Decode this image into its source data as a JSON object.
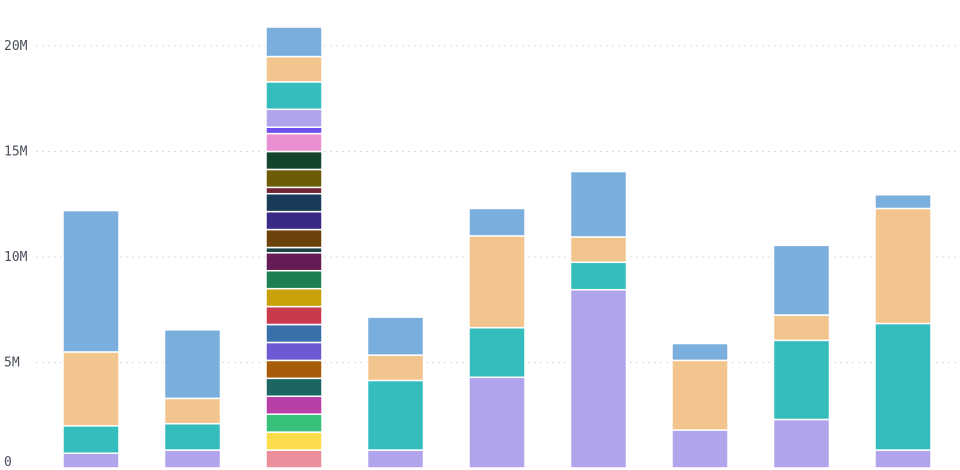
{
  "chart_data": {
    "type": "bar",
    "stacked": true,
    "orientation": "vertical",
    "grid": true,
    "ylim": [
      0,
      21000000
    ],
    "y_ticks": [
      {
        "value": 0,
        "label": "0"
      },
      {
        "value": 5000000,
        "label": "5M"
      },
      {
        "value": 10000000,
        "label": "10M"
      },
      {
        "value": 15000000,
        "label": "15M"
      },
      {
        "value": 20000000,
        "label": "20M"
      }
    ],
    "bars": [
      {
        "segments": [
          {
            "value": 700000,
            "color": "#b0a4ec"
          },
          {
            "value": 1300000,
            "color": "#35bcbd"
          },
          {
            "value": 3500000,
            "color": "#f2c48e"
          },
          {
            "value": 6700000,
            "color": "#7aafdd"
          }
        ]
      },
      {
        "segments": [
          {
            "value": 850000,
            "color": "#b0a4ec"
          },
          {
            "value": 1250000,
            "color": "#35bcbd"
          },
          {
            "value": 1200000,
            "color": "#f2c48e"
          },
          {
            "value": 3250000,
            "color": "#7aafdd"
          }
        ]
      },
      {
        "segments": [
          {
            "value": 850000,
            "color": "#ec8f9c"
          },
          {
            "value": 850000,
            "color": "#fbdc4c"
          },
          {
            "value": 850000,
            "color": "#37c07a"
          },
          {
            "value": 850000,
            "color": "#b83fa6"
          },
          {
            "value": 850000,
            "color": "#1b6663"
          },
          {
            "value": 850000,
            "color": "#a65c08"
          },
          {
            "value": 850000,
            "color": "#6c5ad3"
          },
          {
            "value": 850000,
            "color": "#3970a9"
          },
          {
            "value": 850000,
            "color": "#ca3a4d"
          },
          {
            "value": 850000,
            "color": "#c8a009"
          },
          {
            "value": 850000,
            "color": "#1d7f52"
          },
          {
            "value": 850000,
            "color": "#651c55"
          },
          {
            "value": 250000,
            "color": "#1e4446"
          },
          {
            "value": 850000,
            "color": "#6c420b"
          },
          {
            "value": 850000,
            "color": "#3a2a85"
          },
          {
            "value": 850000,
            "color": "#1a3a5a"
          },
          {
            "value": 300000,
            "color": "#702634"
          },
          {
            "value": 850000,
            "color": "#6c5c08"
          },
          {
            "value": 850000,
            "color": "#13452c"
          },
          {
            "value": 850000,
            "color": "#ea90d2"
          },
          {
            "value": 300000,
            "color": "#6d4ef0"
          },
          {
            "value": 850000,
            "color": "#b0a4ec"
          },
          {
            "value": 1300000,
            "color": "#35bcbd"
          },
          {
            "value": 1200000,
            "color": "#f2c48e"
          },
          {
            "value": 1400000,
            "color": "#7aafdd"
          }
        ]
      },
      {
        "segments": [
          {
            "value": 850000,
            "color": "#b0a4ec"
          },
          {
            "value": 3300000,
            "color": "#35bcbd"
          },
          {
            "value": 1200000,
            "color": "#f2c48e"
          },
          {
            "value": 1800000,
            "color": "#7aafdd"
          }
        ]
      },
      {
        "segments": [
          {
            "value": 4300000,
            "color": "#b0a4ec"
          },
          {
            "value": 2350000,
            "color": "#35bcbd"
          },
          {
            "value": 4350000,
            "color": "#f2c48e"
          },
          {
            "value": 1300000,
            "color": "#7aafdd"
          }
        ]
      },
      {
        "segments": [
          {
            "value": 8450000,
            "color": "#b0a4ec"
          },
          {
            "value": 1300000,
            "color": "#35bcbd"
          },
          {
            "value": 1200000,
            "color": "#f2c48e"
          },
          {
            "value": 3100000,
            "color": "#7aafdd"
          }
        ]
      },
      {
        "segments": [
          {
            "value": 1800000,
            "color": "#b0a4ec"
          },
          {
            "value": 3300000,
            "color": "#f2c48e"
          },
          {
            "value": 800000,
            "color": "#7aafdd"
          }
        ]
      },
      {
        "segments": [
          {
            "value": 2300000,
            "color": "#b0a4ec"
          },
          {
            "value": 3750000,
            "color": "#35bcbd"
          },
          {
            "value": 1200000,
            "color": "#f2c48e"
          },
          {
            "value": 3300000,
            "color": "#7aafdd"
          }
        ]
      },
      {
        "segments": [
          {
            "value": 850000,
            "color": "#b0a4ec"
          },
          {
            "value": 6000000,
            "color": "#35bcbd"
          },
          {
            "value": 5450000,
            "color": "#f2c48e"
          },
          {
            "value": 650000,
            "color": "#7aafdd"
          }
        ]
      }
    ]
  }
}
